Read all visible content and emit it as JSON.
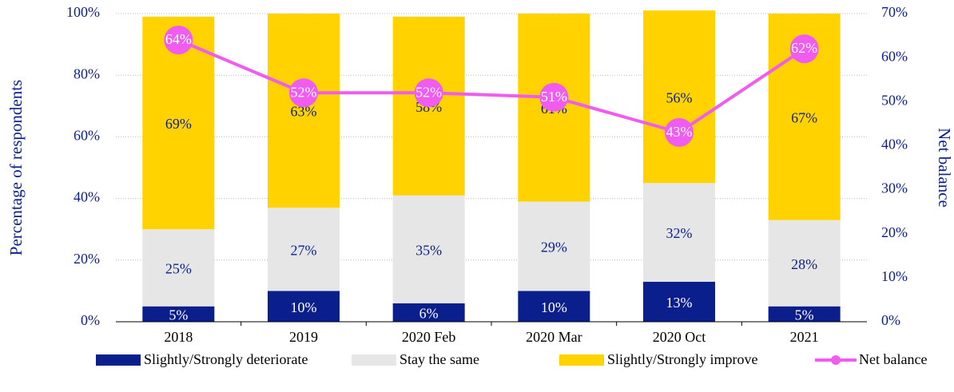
{
  "chart_data": {
    "type": "bar",
    "stacked": true,
    "categories": [
      "2018",
      "2019",
      "2020 Feb",
      "2020 Mar",
      "2020 Oct",
      "2021"
    ],
    "ylabel": "Percentage of respondents",
    "y2label": "Net balance",
    "ylim": [
      0,
      100
    ],
    "yticks": [
      {
        "value": 0,
        "label": "0%"
      },
      {
        "value": 20,
        "label": "20%"
      },
      {
        "value": 40,
        "label": "40%"
      },
      {
        "value": 60,
        "label": "60%"
      },
      {
        "value": 80,
        "label": "80%"
      },
      {
        "value": 100,
        "label": "100%"
      }
    ],
    "y2lim": [
      0,
      70
    ],
    "y2ticks": [
      {
        "value": 0,
        "label": "0%"
      },
      {
        "value": 10,
        "label": "10%"
      },
      {
        "value": 20,
        "label": "20%"
      },
      {
        "value": 30,
        "label": "30%"
      },
      {
        "value": 40,
        "label": "40%"
      },
      {
        "value": 50,
        "label": "50%"
      },
      {
        "value": 60,
        "label": "60%"
      },
      {
        "value": 70,
        "label": "70%"
      }
    ],
    "grid": true,
    "legend": "bottom",
    "series": [
      {
        "name": "Slightly/Strongly deteriorate",
        "color": "#0a1f8c",
        "label_color": "#ffffff",
        "values": [
          5,
          10,
          6,
          10,
          13,
          5
        ],
        "value_labels": [
          "5%",
          "10%",
          "6%",
          "10%",
          "13%",
          "5%"
        ]
      },
      {
        "name": "Stay the same",
        "color": "#e6e6e6",
        "label_color": "#0a1f8c",
        "values": [
          25,
          27,
          35,
          29,
          32,
          28
        ],
        "value_labels": [
          "25%",
          "27%",
          "35%",
          "29%",
          "32%",
          "28%"
        ]
      },
      {
        "name": "Slightly/Strongly improve",
        "color": "#ffd200",
        "label_color": "#0a1f8c",
        "values": [
          69,
          63,
          58,
          61,
          56,
          67
        ],
        "value_labels": [
          "69%",
          "63%",
          "58%",
          "61%",
          "56%",
          "67%"
        ]
      },
      {
        "name": "Net balance",
        "type": "line",
        "axis": "y2",
        "color": "#f05cf0",
        "label_color": "#ffffff",
        "values": [
          64,
          52,
          52,
          51,
          43,
          62
        ],
        "value_labels": [
          "64%",
          "52%",
          "52%",
          "51%",
          "43%",
          "62%"
        ]
      }
    ]
  }
}
